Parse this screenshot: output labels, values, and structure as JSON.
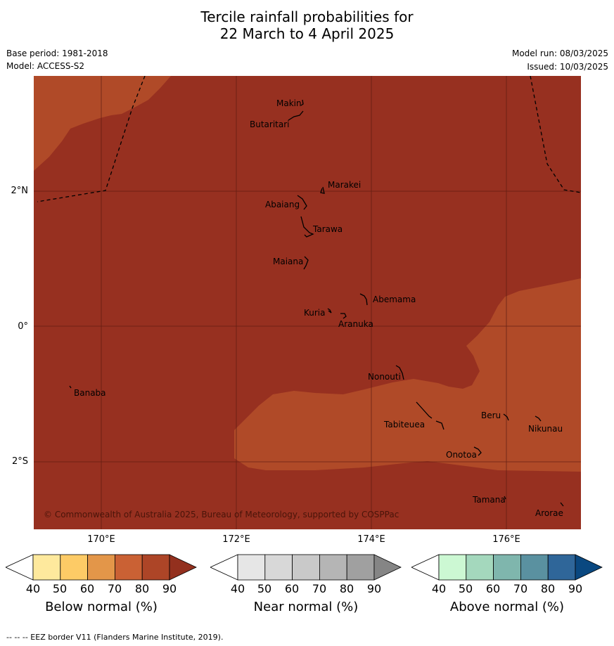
{
  "header": {
    "title_line1": "Tercile rainfall probabilities for",
    "title_line2": "22 March to 4 April 2025",
    "base_period": "Base period: 1981-2018",
    "model": "Model: ACCESS-S2",
    "model_run": "Model run: 08/03/2025",
    "issued": "Issued: 10/03/2025"
  },
  "map": {
    "lon_labels": [
      "170°E",
      "172°E",
      "174°E",
      "176°E"
    ],
    "lat_labels": [
      "2°N",
      "0°",
      "2°S"
    ],
    "places": {
      "makin": "Makin",
      "butaritari": "Butaritari",
      "marakei": "Marakei",
      "abaiang": "Abaiang",
      "tarawa": "Tarawa",
      "maiana": "Maiana",
      "abemama": "Abemama",
      "kuria": "Kuria",
      "aranuka": "Aranuka",
      "nonouti": "Nonouti",
      "banaba": "Banaba",
      "beru": "Beru",
      "nikunau": "Nikunau",
      "tabiteuea": "Tabiteuea",
      "onotoa": "Onotoa",
      "tamana": "Tamana",
      "arorae": "Arorae"
    },
    "copyright": "© Commonwealth of Australia 2025, Bureau of Meteorology, supported by COSPPac",
    "colors": {
      "below_90": "#973020",
      "below_80": "#b04a28",
      "land": "#000000",
      "grid": "#5a1a10"
    }
  },
  "colorbars": [
    {
      "title": "Below normal (%)",
      "ticks": [
        "40",
        "50",
        "60",
        "70",
        "80",
        "90"
      ],
      "colors": [
        "#ffffff",
        "#fee99d",
        "#fdcb66",
        "#e39649",
        "#ca6134",
        "#ad4527",
        "#93301e"
      ]
    },
    {
      "title": "Near normal (%)",
      "ticks": [
        "40",
        "50",
        "60",
        "70",
        "80",
        "90"
      ],
      "colors": [
        "#ffffff",
        "#e6e6e6",
        "#d8d8d8",
        "#c9c9c9",
        "#b5b5b5",
        "#a0a0a0",
        "#858585"
      ]
    },
    {
      "title": "Above normal (%)",
      "ticks": [
        "40",
        "50",
        "60",
        "70",
        "80",
        "90"
      ],
      "colors": [
        "#ffffff",
        "#ccf8d3",
        "#a4d8bd",
        "#7fb6ad",
        "#5a91a0",
        "#2f6699",
        "#0a4880"
      ]
    }
  ],
  "footer": {
    "eez_note": "--  --  -- EEZ border V11 (Flanders Marine Institute, 2019)."
  }
}
